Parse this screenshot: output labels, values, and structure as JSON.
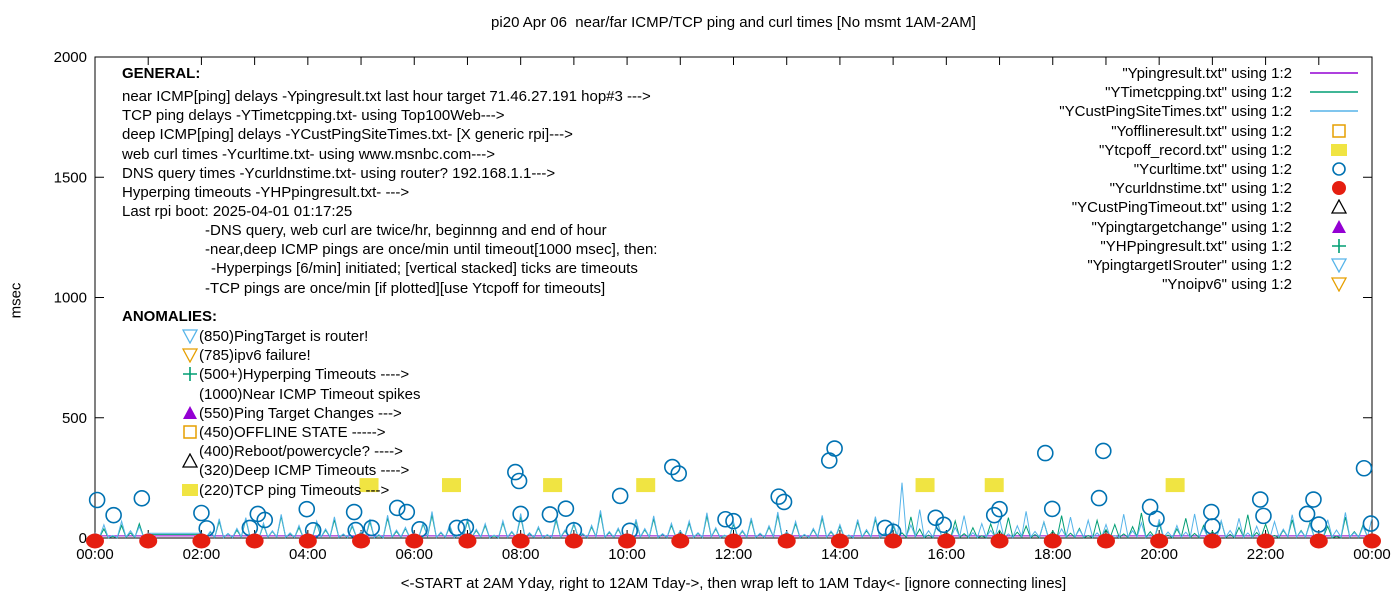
{
  "title": "pi20 Apr 06  near/far ICMP/TCP ping and curl times [No msmt 1AM-2AM]",
  "chart_data": {
    "type": "line+scatter",
    "title": "pi20 Apr 06  near/far ICMP/TCP ping and curl times [No msmt 1AM-2AM]",
    "xlabel": "<-START at 2AM Yday, right to 12AM Tday->, then wrap left to 1AM Tday<- [ignore connecting lines]",
    "ylabel": "msec",
    "ylim": [
      0,
      2000
    ],
    "xlim_hours": [
      0,
      24
    ],
    "grid": false,
    "legend_position": "top-right-inside",
    "y_ticks": [
      0,
      500,
      1000,
      1500,
      2000
    ],
    "x_ticks": [
      {
        "hour": 0,
        "label": "00:00"
      },
      {
        "hour": 2,
        "label": "02:00"
      },
      {
        "hour": 4,
        "label": "04:00"
      },
      {
        "hour": 6,
        "label": "06:00"
      },
      {
        "hour": 8,
        "label": "08:00"
      },
      {
        "hour": 10,
        "label": "10:00"
      },
      {
        "hour": 12,
        "label": "12:00"
      },
      {
        "hour": 14,
        "label": "14:00"
      },
      {
        "hour": 16,
        "label": "16:00"
      },
      {
        "hour": 18,
        "label": "18:00"
      },
      {
        "hour": 20,
        "label": "20:00"
      },
      {
        "hour": 22,
        "label": "22:00"
      },
      {
        "hour": 24,
        "label": "00:00"
      }
    ],
    "minor_tick_every_hours": 1,
    "series": [
      {
        "name": "Ypingresult",
        "label": "\"Ypingresult.txt\" using 1:2",
        "color": "#9400d3",
        "style": "line",
        "flat_msec": 9
      },
      {
        "name": "YTimetcpping",
        "label": "\"YTimetcpping.txt\" using 1:2",
        "color": "#009e73",
        "style": "line",
        "sample_minutes": 10,
        "values": [
          14,
          38,
          7,
          52,
          21,
          60,
          15,
          15,
          15,
          15,
          15,
          15,
          15,
          24,
          70,
          18,
          33,
          78,
          12,
          55,
          28,
          90,
          17,
          44,
          8,
          61,
          33,
          76,
          14,
          49,
          22,
          68,
          11,
          83,
          27,
          39,
          16,
          58,
          95,
          21,
          47,
          13,
          70,
          31,
          52,
          9,
          64,
          24,
          88,
          18,
          41,
          12,
          75,
          29,
          57,
          16,
          46,
          101,
          23,
          36,
          11,
          69,
          34,
          80,
          15,
          53,
          26,
          62,
          19,
          92,
          38,
          10,
          57,
          28,
          74,
          17,
          45,
          96,
          22,
          60,
          13,
          35,
          83,
          25,
          49,
          11,
          67,
          30,
          78,
          16,
          54,
          21,
          88,
          37,
          12,
          63,
          27,
          71,
          18,
          43,
          9,
          59,
          32,
          85,
          24,
          50,
          14,
          66,
          29,
          93,
          20,
          40,
          10,
          73,
          35,
          56,
          17,
          47,
          104,
          26,
          61,
          12,
          38,
          82,
          19,
          52,
          28,
          70,
          15,
          44,
          97,
          23,
          58,
          11,
          33,
          76,
          31,
          64,
          18,
          49,
          8,
          87,
          26,
          55,
          13
        ]
      },
      {
        "name": "YCustPingSiteTimes",
        "label": "\"YCustPingSiteTimes.txt\" using 1:2",
        "color": "#56b4e9",
        "style": "line",
        "sample_minutes": 10,
        "values": [
          22,
          55,
          11,
          70,
          30,
          48,
          20,
          20,
          20,
          20,
          20,
          20,
          20,
          28,
          80,
          19,
          40,
          85,
          16,
          62,
          30,
          98,
          21,
          52,
          11,
          70,
          38,
          88,
          17,
          56,
          26,
          79,
          14,
          95,
          33,
          44,
          19,
          65,
          110,
          25,
          54,
          15,
          81,
          36,
          60,
          12,
          72,
          28,
          102,
          22,
          47,
          14,
          86,
          33,
          64,
          19,
          53,
          115,
          27,
          41,
          13,
          78,
          39,
          92,
          18,
          61,
          30,
          71,
          22,
          105,
          43,
          12,
          66,
          32,
          84,
          20,
          51,
          108,
          26,
          69,
          15,
          40,
          94,
          29,
          56,
          13,
          77,
          35,
          89,
          19,
          62,
          230,
          54,
          118,
          30,
          70,
          14,
          44,
          93,
          22,
          60,
          32,
          80,
          17,
          51,
          111,
          27,
          66,
          13,
          38,
          87,
          35,
          74,
          21,
          56,
          10,
          99,
          30,
          63,
          15,
          78,
          25,
          52,
          24,
          100,
          42,
          14,
          72,
          31,
          82,
          21,
          49,
          11,
          68,
          37,
          97,
          28,
          57,
          16,
          76,
          33,
          106,
          23,
          46,
          84
        ]
      },
      {
        "name": "Yofflineresult",
        "label": "\"Yofflineresult.txt\" using 1:2",
        "color": "#e69f00",
        "style": "open-square",
        "points": []
      },
      {
        "name": "Ytcpoff_record",
        "label": "\"Ytcpoff_record.txt\" using 1:2",
        "color": "#f0e442",
        "style": "filled-square",
        "points": [
          [
            5.15,
            220
          ],
          [
            6.7,
            220
          ],
          [
            8.6,
            220
          ],
          [
            10.35,
            220
          ],
          [
            15.6,
            220
          ],
          [
            16.9,
            220
          ],
          [
            20.3,
            220
          ]
        ]
      },
      {
        "name": "Ycurltime",
        "label": "\"Ycurltime.txt\" using 1:2",
        "color": "#0072b2",
        "style": "open-circle",
        "points": [
          [
            0.04,
            158
          ],
          [
            0.35,
            95
          ],
          [
            0.88,
            165
          ],
          [
            2.0,
            104
          ],
          [
            2.1,
            40
          ],
          [
            2.91,
            42
          ],
          [
            3.06,
            100
          ],
          [
            3.19,
            75
          ],
          [
            3.98,
            120
          ],
          [
            4.1,
            32
          ],
          [
            4.87,
            108
          ],
          [
            4.9,
            33
          ],
          [
            5.2,
            42
          ],
          [
            5.68,
            125
          ],
          [
            5.86,
            108
          ],
          [
            6.1,
            36
          ],
          [
            6.8,
            42
          ],
          [
            6.97,
            45
          ],
          [
            7.9,
            274
          ],
          [
            7.97,
            237
          ],
          [
            8.0,
            100
          ],
          [
            8.55,
            98
          ],
          [
            8.85,
            122
          ],
          [
            9.0,
            32
          ],
          [
            9.87,
            175
          ],
          [
            10.05,
            30
          ],
          [
            10.85,
            295
          ],
          [
            10.97,
            268
          ],
          [
            11.85,
            78
          ],
          [
            12.0,
            70
          ],
          [
            12.85,
            172
          ],
          [
            12.95,
            150
          ],
          [
            13.8,
            322
          ],
          [
            13.9,
            372
          ],
          [
            14.85,
            42
          ],
          [
            15.0,
            26
          ],
          [
            15.8,
            84
          ],
          [
            15.95,
            55
          ],
          [
            16.9,
            95
          ],
          [
            17.0,
            120
          ],
          [
            17.86,
            353
          ],
          [
            17.99,
            121
          ],
          [
            18.87,
            166
          ],
          [
            18.95,
            362
          ],
          [
            19.83,
            129
          ],
          [
            19.95,
            80
          ],
          [
            20.98,
            108
          ],
          [
            21.0,
            48
          ],
          [
            21.9,
            160
          ],
          [
            21.96,
            92
          ],
          [
            22.78,
            100
          ],
          [
            22.9,
            160
          ],
          [
            23.0,
            56
          ],
          [
            23.85,
            290
          ],
          [
            23.98,
            60
          ]
        ]
      },
      {
        "name": "Ycurldnstime",
        "label": "\"Ycurldnstime.txt\" using 1:2",
        "color": "#e51e10",
        "style": "filled-circle",
        "points": [
          [
            0,
            0
          ],
          [
            1,
            0
          ],
          [
            2,
            0
          ],
          [
            3,
            0
          ],
          [
            4,
            0
          ],
          [
            5,
            0
          ],
          [
            6,
            0
          ],
          [
            7,
            0
          ],
          [
            8,
            0
          ],
          [
            9,
            0
          ],
          [
            10,
            0
          ],
          [
            11,
            0
          ],
          [
            12,
            0
          ],
          [
            13,
            0
          ],
          [
            14,
            0
          ],
          [
            15,
            0
          ],
          [
            16,
            0
          ],
          [
            17,
            0
          ],
          [
            18,
            0
          ],
          [
            19,
            0
          ],
          [
            20,
            0
          ],
          [
            21,
            0
          ],
          [
            22,
            0
          ],
          [
            23,
            0
          ],
          [
            24,
            0
          ]
        ]
      },
      {
        "name": "YCustPingTimeout",
        "label": "\"YCustPingTimeout.txt\" using 1:2",
        "color": "#000000",
        "style": "open-triangle-up",
        "points": []
      },
      {
        "name": "Ypingtargetchange",
        "label": "\"Ypingtargetchange\" using 1:2",
        "color": "#9400d3",
        "style": "filled-triangle-up",
        "points": []
      },
      {
        "name": "YHPpingresult",
        "label": "\"YHPpingresult.txt\" using 1:2",
        "color": "#009e73",
        "style": "plus",
        "points": []
      },
      {
        "name": "YpingtargetISrouter",
        "label": "\"YpingtargetISrouter\" using 1:2",
        "color": "#56b4e9",
        "style": "open-triangle-down",
        "points": []
      },
      {
        "name": "Ynoipv6",
        "label": "\"Ynoipv6\" using 1:2",
        "color": "#e69f00",
        "style": "open-triangle-down",
        "points": []
      }
    ]
  },
  "annotations": {
    "general_title": "GENERAL:",
    "general_lines": [
      "near ICMP[ping] delays -Ypingresult.txt last hour target 71.46.27.191 hop#3 --->",
      "TCP ping delays -YTimetcpping.txt- using Top100Web--->",
      "deep ICMP[ping] delays -YCustPingSiteTimes.txt- [X generic rpi]--->",
      "web curl times -Ycurltime.txt- using www.msnbc.com--->",
      "DNS query times -Ycurldnstime.txt- using router? 192.168.1.1--->",
      "Hyperping timeouts -YHPpingresult.txt- --->",
      "Last rpi boot: 2025-04-01 01:17:25",
      "-DNS query, web curl are twice/hr, beginnng and end of hour",
      "-near,deep ICMP pings are once/min until timeout[1000 msec], then:",
      "-Hyperpings [6/min] initiated; [vertical stacked] ticks are timeouts",
      "-TCP pings are once/min [if plotted][use Ytcpoff for timeouts]"
    ],
    "anomalies_title": "ANOMALIES:",
    "anomalies": [
      {
        "marker": "open-triangle-down",
        "color": "#56b4e9",
        "text": "(850)PingTarget is router!"
      },
      {
        "marker": "open-triangle-down",
        "color": "#e69f00",
        "text": "(785)ipv6 failure!"
      },
      {
        "marker": "plus",
        "color": "#009e73",
        "text": "(500+)Hyperping Timeouts ---->"
      },
      {
        "marker": "none",
        "color": "",
        "text": "(1000)Near ICMP Timeout spikes"
      },
      {
        "marker": "filled-triangle-up",
        "color": "#9400d3",
        "text": "(550)Ping Target Changes --->"
      },
      {
        "marker": "open-square",
        "color": "#e69f00",
        "text": "(450)OFFLINE STATE ----->"
      },
      {
        "marker": "none",
        "color": "",
        "text": "(400)Reboot/powercycle? ---->"
      },
      {
        "marker": "open-triangle-up",
        "color": "#000000",
        "text": "(320)Deep ICMP Timeouts ---->"
      },
      {
        "marker": "filled-square",
        "color": "#f0e442",
        "text": "(220)TCP ping Timeouts --->"
      }
    ]
  }
}
